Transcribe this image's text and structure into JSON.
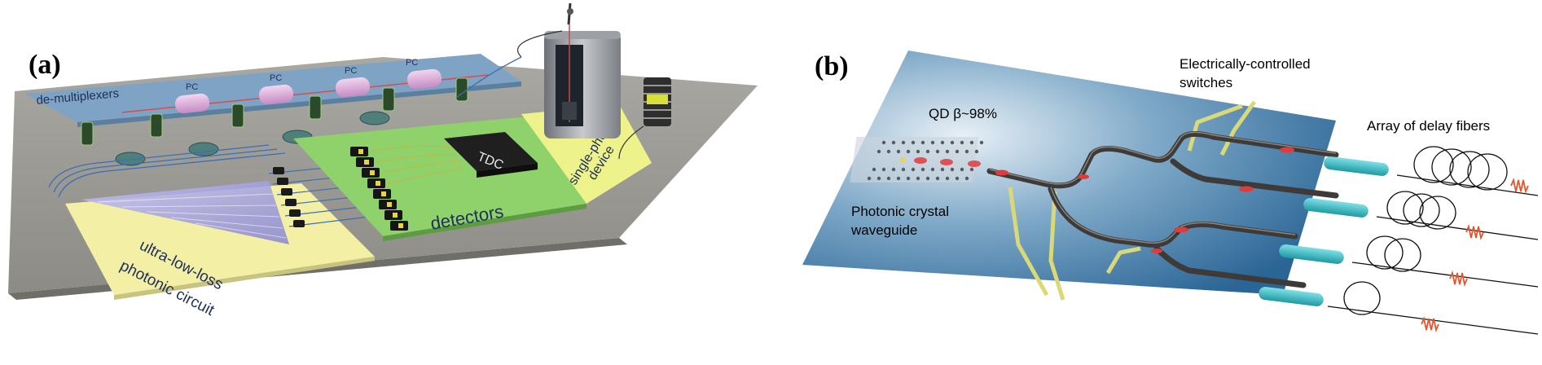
{
  "panel_a": {
    "label": "(a)",
    "demux_label": "de-multiplexers",
    "pc_labels": [
      "PC",
      "PC",
      "PC",
      "PC"
    ],
    "tdc_label": "TDC",
    "detectors_label": "detectors",
    "source_label_line1": "single-photon",
    "source_label_line2": "device",
    "circuit_label_line1": "ultra-low-loss",
    "circuit_label_line2": "photonic circuit"
  },
  "panel_b": {
    "label": "(b)",
    "qd_label": "QD β~98%",
    "crystal_label_line1": "Photonic crystal",
    "crystal_label_line2": "waveguide",
    "switch_label_line1": "Electrically-controlled",
    "switch_label_line2": "switches",
    "delay_label": "Array of delay fibers"
  },
  "colors": {
    "platform": "#9a9993",
    "demux_board": "#7fa3c4",
    "detector_board": "#8fd16a",
    "circuit_board": "#f3f0a6",
    "source_board": "#eef28a",
    "chip": "#2c6a9a",
    "electrode": "#d9d977",
    "fiber": "#3ac0c8"
  }
}
